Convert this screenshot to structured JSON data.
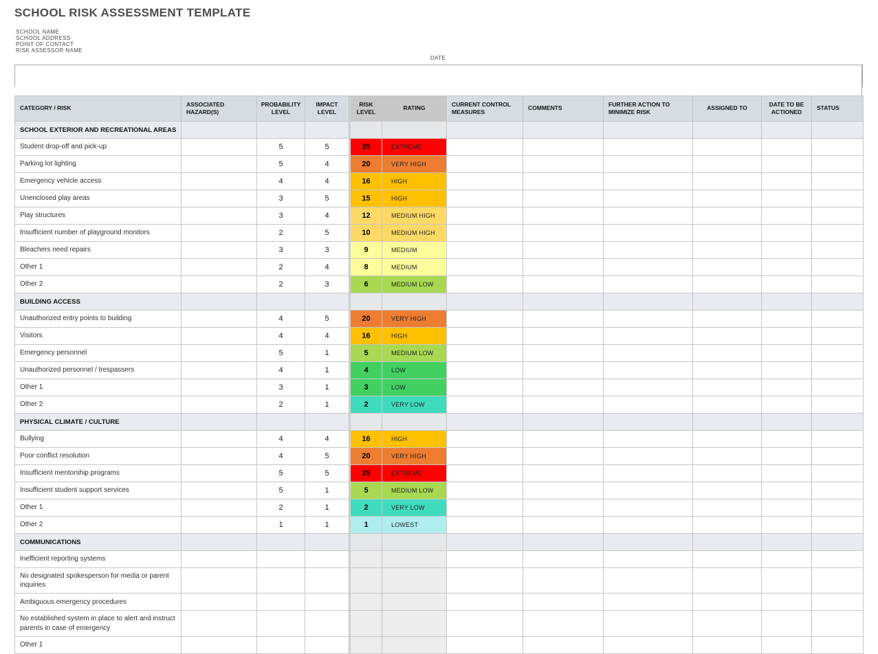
{
  "title": "SCHOOL RISK ASSESSMENT TEMPLATE",
  "form": {
    "fields": [
      {
        "label": "SCHOOL NAME",
        "value": ""
      },
      {
        "label": "SCHOOL ADDRESS",
        "value": ""
      },
      {
        "label": "POINT OF CONTACT",
        "value": ""
      },
      {
        "label": "RISK ASSESSOR NAME",
        "value": ""
      },
      {
        "label": "DATE",
        "value": ""
      }
    ]
  },
  "colors": {
    "grid": "#c6c6c6",
    "header_bg": "#d7dce3",
    "header_accent_bg": "#c8c8c8",
    "section_bg": "#e9ebf0",
    "empty_risk_bg": "#ededed",
    "title_text": "#4d4d4d"
  },
  "table": {
    "columns": [
      "CATEGORY / RISK",
      "ASSOCIATED HAZARD(S)",
      "PROBABILITY LEVEL",
      "IMPACT LEVEL",
      "RISK LEVEL",
      "RATING",
      "CURRENT CONTROL MEASURES",
      "COMMENTS",
      "FURTHER ACTION TO MINIMIZE RISK",
      "ASSIGNED TO",
      "DATE TO BE ACTIONED",
      "STATUS"
    ],
    "rating_colors": {
      "EXTREME": "#fe0000",
      "VERY HIGH": "#ed7d31",
      "HIGH": "#ffc000",
      "MEDIUM HIGH": "#ffd966",
      "MEDIUM": "#fdfd9c",
      "MEDIUM LOW": "#a9d952",
      "LOW": "#42d161",
      "VERY LOW": "#3edcbd",
      "LOWEST": "#afedef"
    },
    "sections": [
      {
        "name": "SCHOOL EXTERIOR AND RECREATIONAL AREAS",
        "rows": [
          {
            "risk": "Student drop-off and pick-up",
            "hazard": "",
            "probability": "5",
            "impact": "5",
            "risk_level": "25",
            "rating": "EXTREME"
          },
          {
            "risk": "Parking lot lighting",
            "hazard": "",
            "probability": "5",
            "impact": "4",
            "risk_level": "20",
            "rating": "VERY HIGH"
          },
          {
            "risk": "Emergency vehicle access",
            "hazard": "",
            "probability": "4",
            "impact": "4",
            "risk_level": "16",
            "rating": "HIGH"
          },
          {
            "risk": "Unenclosed play areas",
            "hazard": "",
            "probability": "3",
            "impact": "5",
            "risk_level": "15",
            "rating": "HIGH"
          },
          {
            "risk": "Play structures",
            "hazard": "",
            "probability": "3",
            "impact": "4",
            "risk_level": "12",
            "rating": "MEDIUM HIGH"
          },
          {
            "risk": "Insufficient number of playground monitors",
            "hazard": "",
            "probability": "2",
            "impact": "5",
            "risk_level": "10",
            "rating": "MEDIUM HIGH"
          },
          {
            "risk": "Bleachers need repairs",
            "hazard": "",
            "probability": "3",
            "impact": "3",
            "risk_level": "9",
            "rating": "MEDIUM"
          },
          {
            "risk": "Other 1",
            "hazard": "",
            "probability": "2",
            "impact": "4",
            "risk_level": "8",
            "rating": "MEDIUM"
          },
          {
            "risk": "Other 2",
            "hazard": "",
            "probability": "2",
            "impact": "3",
            "risk_level": "6",
            "rating": "MEDIUM LOW"
          }
        ]
      },
      {
        "name": "BUILDING ACCESS",
        "rows": [
          {
            "risk": "Unauthorized entry points to building",
            "hazard": "",
            "probability": "4",
            "impact": "5",
            "risk_level": "20",
            "rating": "VERY HIGH"
          },
          {
            "risk": "Visitors",
            "hazard": "",
            "probability": "4",
            "impact": "4",
            "risk_level": "16",
            "rating": "HIGH"
          },
          {
            "risk": "Emergency personnel",
            "hazard": "",
            "probability": "5",
            "impact": "1",
            "risk_level": "5",
            "rating": "MEDIUM LOW"
          },
          {
            "risk": "Unauthorized personnel / trespassers",
            "hazard": "",
            "probability": "4",
            "impact": "1",
            "risk_level": "4",
            "rating": "LOW"
          },
          {
            "risk": "Other 1",
            "hazard": "",
            "probability": "3",
            "impact": "1",
            "risk_level": "3",
            "rating": "LOW"
          },
          {
            "risk": "Other 2",
            "hazard": "",
            "probability": "2",
            "impact": "1",
            "risk_level": "2",
            "rating": "VERY LOW"
          }
        ]
      },
      {
        "name": "PHYSICAL CLIMATE / CULTURE",
        "rows": [
          {
            "risk": "Bullying",
            "hazard": "",
            "probability": "4",
            "impact": "4",
            "risk_level": "16",
            "rating": "HIGH"
          },
          {
            "risk": "Poor conflict resolution",
            "hazard": "",
            "probability": "4",
            "impact": "5",
            "risk_level": "20",
            "rating": "VERY HIGH"
          },
          {
            "risk": "Insufficient mentorship programs",
            "hazard": "",
            "probability": "5",
            "impact": "5",
            "risk_level": "25",
            "rating": "EXTREME"
          },
          {
            "risk": "Insufficient student support services",
            "hazard": "",
            "probability": "5",
            "impact": "1",
            "risk_level": "5",
            "rating": "MEDIUM LOW"
          },
          {
            "risk": "Other 1",
            "hazard": "",
            "probability": "2",
            "impact": "1",
            "risk_level": "2",
            "rating": "VERY LOW"
          },
          {
            "risk": "Other 2",
            "hazard": "",
            "probability": "1",
            "impact": "1",
            "risk_level": "1",
            "rating": "LOWEST"
          }
        ]
      },
      {
        "name": "COMMUNICATIONS",
        "rows": [
          {
            "risk": "Inefficient reporting systems",
            "hazard": "",
            "probability": "",
            "impact": "",
            "risk_level": "",
            "rating": ""
          },
          {
            "risk": "No designated spokesperson for media or parent inquiries",
            "hazard": "",
            "probability": "",
            "impact": "",
            "risk_level": "",
            "rating": ""
          },
          {
            "risk": "Ambiguous emergency procedures",
            "hazard": "",
            "probability": "",
            "impact": "",
            "risk_level": "",
            "rating": ""
          },
          {
            "risk": "No established system in place to alert and instruct parents in case of emergency",
            "hazard": "",
            "probability": "",
            "impact": "",
            "risk_level": "",
            "rating": ""
          },
          {
            "risk": "Other 1",
            "hazard": "",
            "probability": "",
            "impact": "",
            "risk_level": "",
            "rating": ""
          }
        ]
      }
    ]
  }
}
